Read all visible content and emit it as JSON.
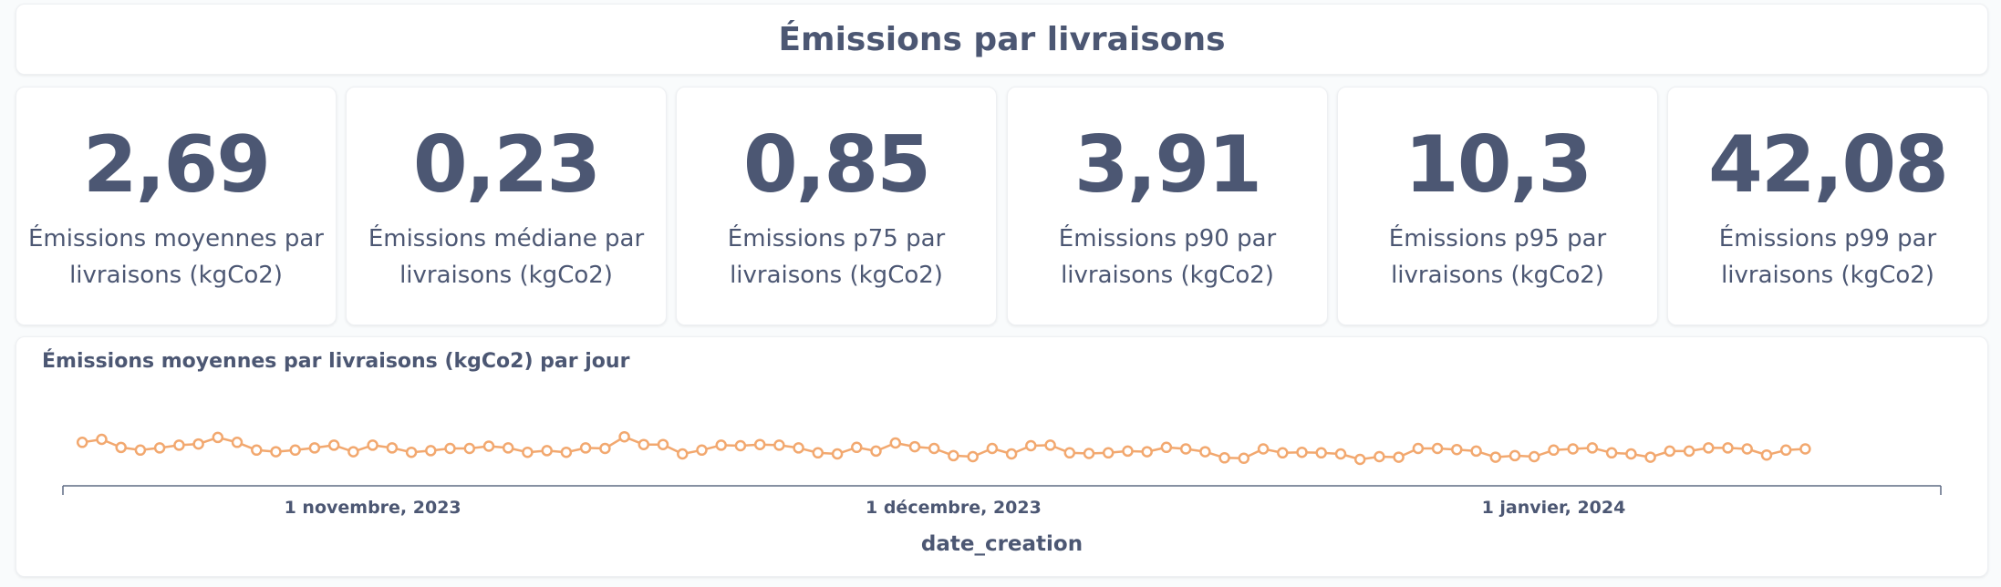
{
  "page_title": "Émissions par livraisons",
  "kpis": [
    {
      "value": "2,69",
      "label": "Émissions moyennes par livraisons (kgCo2)"
    },
    {
      "value": "0,23",
      "label": "Émissions médiane par livraisons (kgCo2)"
    },
    {
      "value": "0,85",
      "label": "Émissions p75 par livraisons (kgCo2)"
    },
    {
      "value": "3,91",
      "label": "Émissions p90 par livraisons (kgCo2)"
    },
    {
      "value": "10,3",
      "label": "Émissions p95 par livraisons (kgCo2)"
    },
    {
      "value": "42,08",
      "label": "Émissions p99 par livraisons (kgCo2)"
    }
  ],
  "chart_data": {
    "type": "line",
    "title": "Émissions moyennes par livraisons (kgCo2) par jour",
    "xlabel": "date_creation",
    "ylabel": "",
    "line_color": "#f2a86f",
    "x_start": "2023-10-16",
    "x_end": "2024-01-21",
    "x_ticks": [
      {
        "date": "2023-11-01",
        "label": "1 novembre, 2023"
      },
      {
        "date": "2023-12-01",
        "label": "1 décembre, 2023"
      },
      {
        "date": "2024-01-01",
        "label": "1 janvier, 2024"
      }
    ],
    "ylim": [
      0,
      8
    ],
    "y_axis_visible": false,
    "grid": false,
    "series": [
      {
        "x_first": "2023-10-17",
        "values": [
          2.98,
          3.19,
          2.63,
          2.45,
          2.6,
          2.79,
          2.87,
          3.32,
          2.98,
          2.45,
          2.34,
          2.45,
          2.6,
          2.79,
          2.34,
          2.79,
          2.6,
          2.3,
          2.41,
          2.56,
          2.56,
          2.72,
          2.6,
          2.3,
          2.41,
          2.3,
          2.6,
          2.56,
          3.36,
          2.83,
          2.83,
          2.19,
          2.45,
          2.79,
          2.75,
          2.83,
          2.79,
          2.6,
          2.26,
          2.19,
          2.64,
          2.38,
          2.94,
          2.68,
          2.56,
          2.07,
          2.0,
          2.56,
          2.19,
          2.75,
          2.79,
          2.26,
          2.22,
          2.26,
          2.38,
          2.34,
          2.64,
          2.53,
          2.34,
          1.92,
          1.89,
          2.53,
          2.26,
          2.3,
          2.26,
          2.19,
          1.81,
          2.0,
          1.96,
          2.56,
          2.56,
          2.49,
          2.38,
          1.96,
          2.07,
          2.0,
          2.45,
          2.53,
          2.6,
          2.26,
          2.19,
          1.96,
          2.38,
          2.38,
          2.6,
          2.6,
          2.53,
          2.11,
          2.45,
          2.53
        ]
      }
    ]
  }
}
